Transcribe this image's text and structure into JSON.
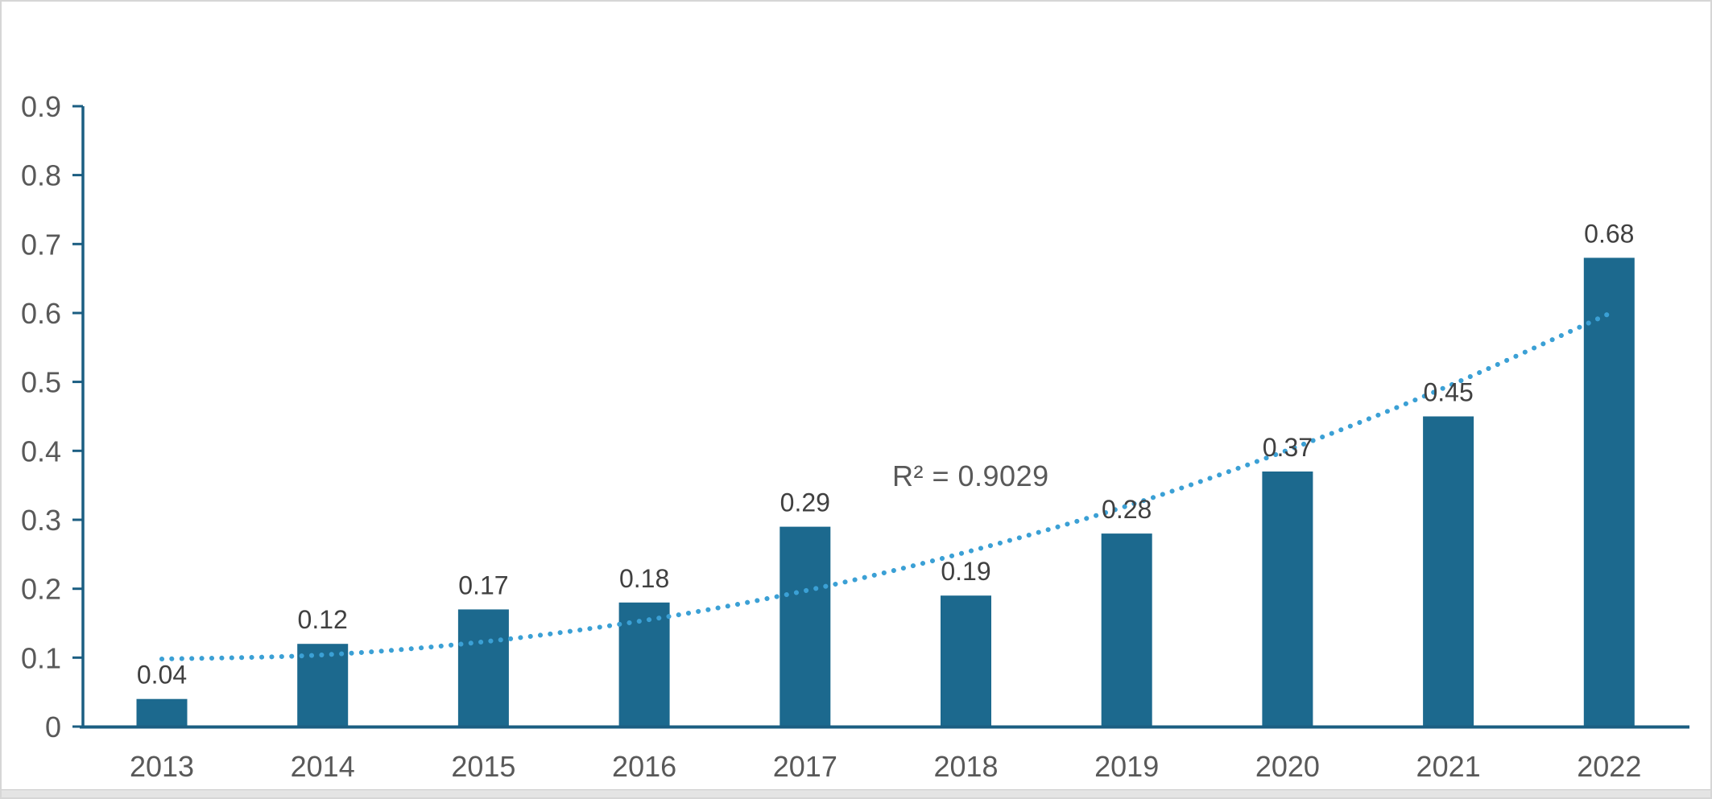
{
  "chart_data": {
    "type": "bar",
    "title": "",
    "xlabel": "",
    "ylabel": "",
    "categories": [
      "2013",
      "2014",
      "2015",
      "2016",
      "2017",
      "2018",
      "2019",
      "2020",
      "2021",
      "2022"
    ],
    "values": [
      0.04,
      0.12,
      0.17,
      0.18,
      0.29,
      0.19,
      0.28,
      0.37,
      0.45,
      0.68
    ],
    "data_labels": [
      "0.04",
      "0.12",
      "0.17",
      "0.18",
      "0.29",
      "0.19",
      "0.28",
      "0.37",
      "0.45",
      "0.68"
    ],
    "y_tick_labels": [
      "0",
      "0.1",
      "0.2",
      "0.3",
      "0.4",
      "0.5",
      "0.6",
      "0.7",
      "0.8",
      "0.9"
    ],
    "ylim": [
      0,
      0.9
    ],
    "grid": false,
    "legend": "none",
    "trendline": {
      "style": "dotted",
      "r_squared_label": "R² = 0.9029",
      "values": [
        0.098,
        0.104,
        0.123,
        0.154,
        0.197,
        0.253,
        0.32,
        0.401,
        0.494,
        0.599
      ]
    },
    "colors": {
      "bar": "#1c698e",
      "trendline": "#3ba0d5",
      "axis": "#1b5e82",
      "tick_label": "#595959",
      "data_label": "#404040",
      "annotation": "#595959",
      "background": "#ffffff",
      "border": "#d6d6d6"
    }
  }
}
